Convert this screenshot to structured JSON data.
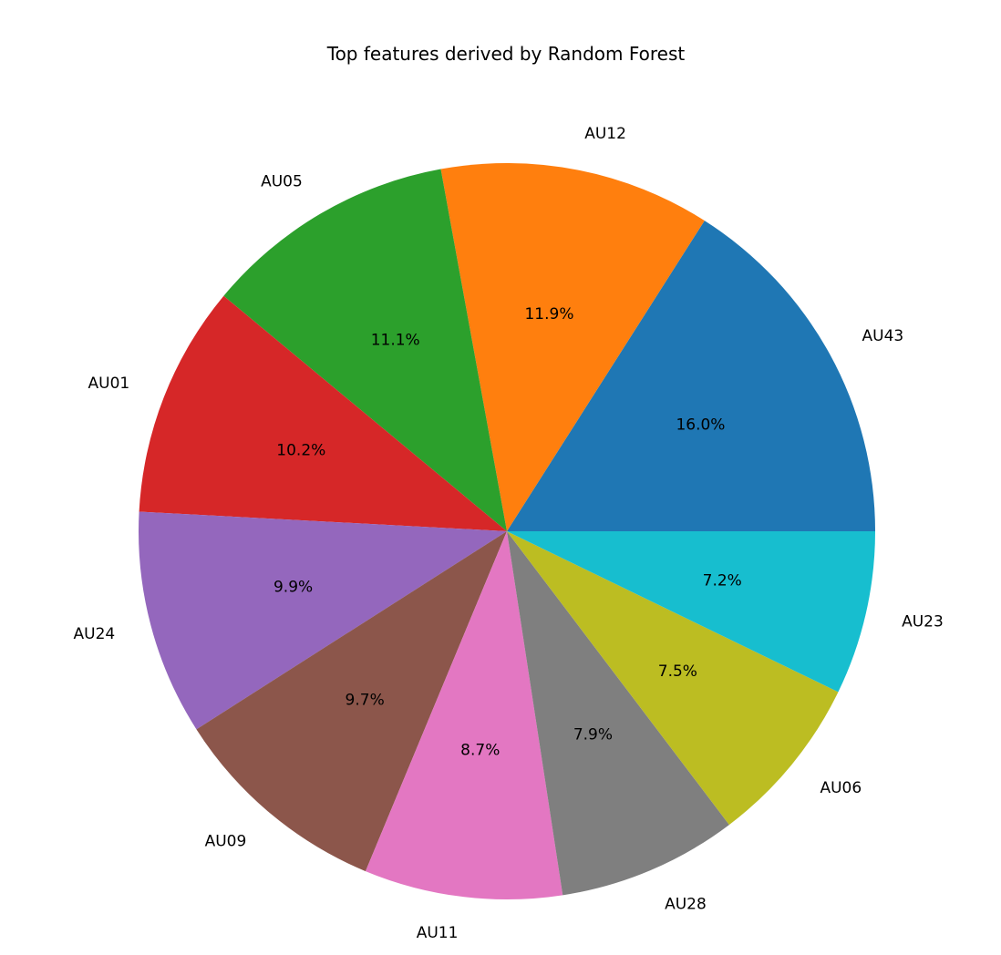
{
  "chart_data": {
    "type": "pie",
    "title": "Top features derived by Random Forest",
    "start_angle_deg": 0,
    "direction": "counterclockwise",
    "slices": [
      {
        "label": "AU43",
        "value": 16.0,
        "pct_text": "16.0%",
        "color": "#1f77b4"
      },
      {
        "label": "AU12",
        "value": 11.9,
        "pct_text": "11.9%",
        "color": "#ff7f0e"
      },
      {
        "label": "AU05",
        "value": 11.1,
        "pct_text": "11.1%",
        "color": "#2ca02c"
      },
      {
        "label": "AU01",
        "value": 10.2,
        "pct_text": "10.2%",
        "color": "#d62728"
      },
      {
        "label": "AU24",
        "value": 9.9,
        "pct_text": "9.9%",
        "color": "#9467bd"
      },
      {
        "label": "AU09",
        "value": 9.7,
        "pct_text": "9.7%",
        "color": "#8c564b"
      },
      {
        "label": "AU11",
        "value": 8.7,
        "pct_text": "8.7%",
        "color": "#e377c2"
      },
      {
        "label": "AU28",
        "value": 7.9,
        "pct_text": "7.9%",
        "color": "#7f7f7f"
      },
      {
        "label": "AU06",
        "value": 7.5,
        "pct_text": "7.5%",
        "color": "#bcbd22"
      },
      {
        "label": "AU23",
        "value": 7.2,
        "pct_text": "7.2%",
        "color": "#17becf"
      }
    ]
  }
}
